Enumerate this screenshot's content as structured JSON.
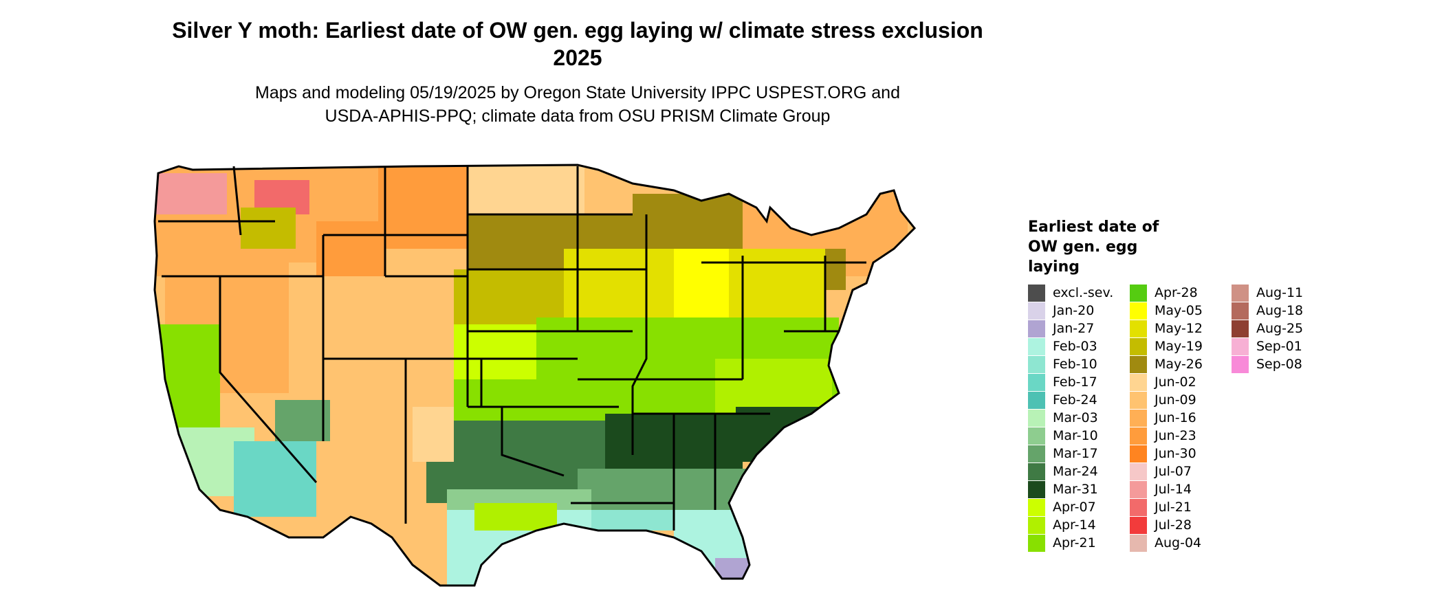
{
  "title": "Silver Y moth: Earliest date of OW gen. egg laying w/ climate stress exclusion 2025",
  "subtitle_line1": "Maps and modeling 05/19/2025 by Oregon State University IPPC USPEST.ORG and",
  "subtitle_line2": "USDA-APHIS-PPQ; climate data from OSU PRISM Climate Group",
  "legend": {
    "title": "Earliest date of OW gen. egg laying",
    "columns": [
      [
        {
          "label": "excl.-sev.",
          "color": "#4d4d4d"
        },
        {
          "label": "Jan-20",
          "color": "#d9d2e9"
        },
        {
          "label": "Jan-27",
          "color": "#b0a4d2"
        },
        {
          "label": "Feb-03",
          "color": "#adf3e0"
        },
        {
          "label": "Feb-10",
          "color": "#8ee6d1"
        },
        {
          "label": "Feb-17",
          "color": "#6ad7c5"
        },
        {
          "label": "Feb-24",
          "color": "#4dc1b3"
        },
        {
          "label": "Mar-03",
          "color": "#b8f2b6"
        },
        {
          "label": "Mar-10",
          "color": "#8ecd8f"
        },
        {
          "label": "Mar-17",
          "color": "#65a46a"
        },
        {
          "label": "Mar-24",
          "color": "#3f7a44"
        },
        {
          "label": "Mar-31",
          "color": "#1b4a1d"
        },
        {
          "label": "Apr-07",
          "color": "#ccff00"
        },
        {
          "label": "Apr-14",
          "color": "#b0f000"
        },
        {
          "label": "Apr-21",
          "color": "#88e000"
        }
      ],
      [
        {
          "label": "Apr-28",
          "color": "#55cc11"
        },
        {
          "label": "May-05",
          "color": "#ffff00"
        },
        {
          "label": "May-12",
          "color": "#e3e000"
        },
        {
          "label": "May-19",
          "color": "#c4bc00"
        },
        {
          "label": "May-26",
          "color": "#a08a10"
        },
        {
          "label": "Jun-02",
          "color": "#ffd591"
        },
        {
          "label": "Jun-09",
          "color": "#ffc370"
        },
        {
          "label": "Jun-16",
          "color": "#ffaf55"
        },
        {
          "label": "Jun-23",
          "color": "#ff9c3c"
        },
        {
          "label": "Jun-30",
          "color": "#ff8420"
        },
        {
          "label": "Jul-07",
          "color": "#f6c8c8"
        },
        {
          "label": "Jul-14",
          "color": "#f49a9a"
        },
        {
          "label": "Jul-21",
          "color": "#f26a6a"
        },
        {
          "label": "Jul-28",
          "color": "#f23b3b"
        },
        {
          "label": "Aug-04",
          "color": "#e6b8ae"
        }
      ],
      [
        {
          "label": "Aug-11",
          "color": "#cf9185"
        },
        {
          "label": "Aug-18",
          "color": "#b46a5d"
        },
        {
          "label": "Aug-25",
          "color": "#8e3f32"
        },
        {
          "label": "Sep-01",
          "color": "#f7b0d4"
        },
        {
          "label": "Sep-08",
          "color": "#f88ad8"
        }
      ]
    ]
  }
}
